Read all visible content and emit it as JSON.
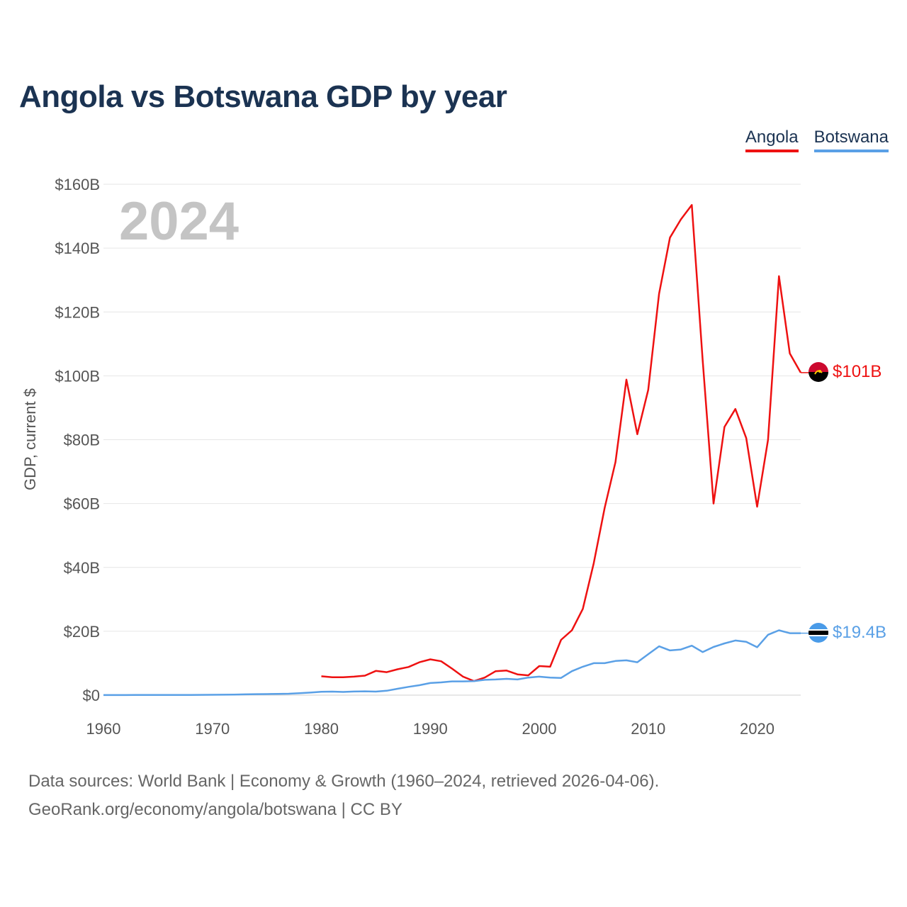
{
  "header": {
    "title": "Angola vs Botswana GDP by year"
  },
  "legend": [
    {
      "name": "Angola",
      "color": "#ee1111"
    },
    {
      "name": "Botswana",
      "color": "#5aa0e6"
    }
  ],
  "overlay_year": "2024",
  "end_labels": {
    "angola": "$101B",
    "botswana": "$19.4B"
  },
  "footer": {
    "line1": "Data sources: World Bank | Economy & Growth (1960–2024, retrieved 2026-04-06).",
    "line2": "GeoRank.org/economy/angola/botswana | CC BY"
  },
  "chart_data": {
    "type": "line",
    "title": "Angola vs Botswana GDP by year",
    "xlabel": "",
    "ylabel": "GDP, current $",
    "xlim": [
      1960,
      2024
    ],
    "ylim": [
      0,
      160
    ],
    "y_unit": "billion USD",
    "x_ticks": [
      1960,
      1970,
      1980,
      1990,
      2000,
      2010,
      2020
    ],
    "y_ticks": [
      0,
      20,
      40,
      60,
      80,
      100,
      120,
      140,
      160
    ],
    "y_tick_labels": [
      "$0",
      "$20B",
      "$40B",
      "$60B",
      "$80B",
      "$100B",
      "$120B",
      "$140B",
      "$160B"
    ],
    "series": [
      {
        "name": "Angola",
        "color": "#ee1111",
        "x": [
          1980,
          1981,
          1982,
          1983,
          1984,
          1985,
          1986,
          1987,
          1988,
          1989,
          1990,
          1991,
          1992,
          1993,
          1994,
          1995,
          1996,
          1997,
          1998,
          1999,
          2000,
          2001,
          2002,
          2003,
          2004,
          2005,
          2006,
          2007,
          2008,
          2009,
          2010,
          2011,
          2012,
          2013,
          2014,
          2015,
          2016,
          2017,
          2018,
          2019,
          2020,
          2021,
          2022,
          2023,
          2024
        ],
        "y": [
          5.9,
          5.6,
          5.6,
          5.8,
          6.1,
          7.6,
          7.2,
          8.1,
          8.8,
          10.3,
          11.2,
          10.6,
          8.3,
          5.8,
          4.4,
          5.5,
          7.5,
          7.7,
          6.5,
          6.2,
          9.1,
          8.9,
          17.3,
          20.3,
          27.0,
          41.3,
          58.6,
          73.0,
          98.8,
          81.7,
          95.6,
          125.7,
          143.3,
          149.0,
          153.5,
          105.0,
          60.0,
          84.0,
          89.6,
          80.5,
          59.0,
          80.0,
          131.2,
          107.0,
          101.0
        ],
        "end_label": "$101B"
      },
      {
        "name": "Botswana",
        "color": "#5aa0e6",
        "x": [
          1960,
          1961,
          1962,
          1963,
          1964,
          1965,
          1966,
          1967,
          1968,
          1969,
          1970,
          1971,
          1972,
          1973,
          1974,
          1975,
          1976,
          1977,
          1978,
          1979,
          1980,
          1981,
          1982,
          1983,
          1984,
          1985,
          1986,
          1987,
          1988,
          1989,
          1990,
          1991,
          1992,
          1993,
          1994,
          1995,
          1996,
          1997,
          1998,
          1999,
          2000,
          2001,
          2002,
          2003,
          2004,
          2005,
          2006,
          2007,
          2008,
          2009,
          2010,
          2011,
          2012,
          2013,
          2014,
          2015,
          2016,
          2017,
          2018,
          2019,
          2020,
          2021,
          2022,
          2023,
          2024
        ],
        "y": [
          0.03,
          0.03,
          0.03,
          0.04,
          0.04,
          0.05,
          0.05,
          0.06,
          0.07,
          0.09,
          0.1,
          0.14,
          0.18,
          0.24,
          0.3,
          0.34,
          0.39,
          0.45,
          0.6,
          0.8,
          1.06,
          1.1,
          1.0,
          1.14,
          1.2,
          1.1,
          1.38,
          2.0,
          2.6,
          3.1,
          3.8,
          4.0,
          4.3,
          4.3,
          4.4,
          4.8,
          4.9,
          5.1,
          4.9,
          5.5,
          5.8,
          5.5,
          5.4,
          7.5,
          8.9,
          10.0,
          10.0,
          10.7,
          10.9,
          10.3,
          12.8,
          15.3,
          14.0,
          14.3,
          15.5,
          13.5,
          15.1,
          16.2,
          17.1,
          16.7,
          15.0,
          18.9,
          20.3,
          19.4,
          19.4
        ],
        "end_label": "$19.4B"
      }
    ]
  }
}
